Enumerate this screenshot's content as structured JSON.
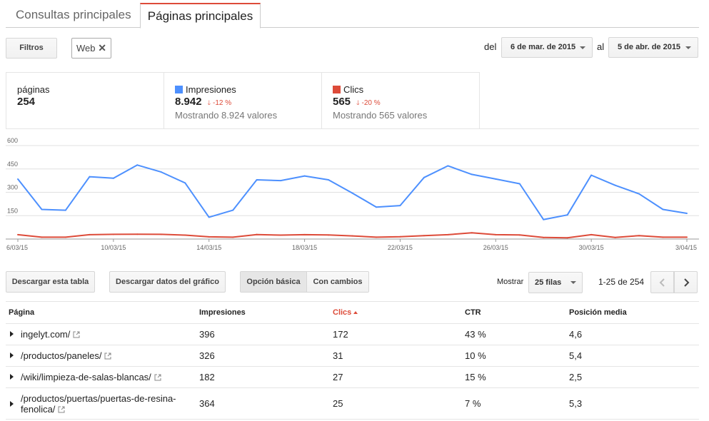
{
  "tabs": [
    {
      "label": "Consultas principales",
      "active": false
    },
    {
      "label": "Páginas principales",
      "active": true
    }
  ],
  "filters": {
    "button_label": "Filtros",
    "chip_label": "Web",
    "chip_close": "✕"
  },
  "dates": {
    "from_label": "del",
    "from_value": "6 de mar. de 2015",
    "to_label": "al",
    "to_value": "5 de abr. de 2015"
  },
  "stats": {
    "pages": {
      "label": "páginas",
      "value": "254"
    },
    "impressions": {
      "label": "Impresiones",
      "value": "8.942",
      "change": "-12 %",
      "sub": "Mostrando 8.924 valores",
      "color": "#4d90fe"
    },
    "clicks": {
      "label": "Clics",
      "value": "565",
      "change": "-20 %",
      "sub": "Mostrando 565 valores",
      "color": "#dd4b39"
    }
  },
  "chart_data": {
    "type": "line",
    "x": [
      "6/03/15",
      "7/03/15",
      "8/03/15",
      "9/03/15",
      "10/03/15",
      "11/03/15",
      "12/03/15",
      "13/03/15",
      "14/03/15",
      "15/03/15",
      "16/03/15",
      "17/03/15",
      "18/03/15",
      "19/03/15",
      "20/03/15",
      "21/03/15",
      "22/03/15",
      "23/03/15",
      "24/03/15",
      "25/03/15",
      "26/03/15",
      "27/03/15",
      "28/03/15",
      "29/03/15",
      "30/03/15",
      "31/03/15",
      "1/04/15",
      "2/04/15",
      "3/04/15"
    ],
    "tick_labels": [
      "6/03/15",
      "10/03/15",
      "14/03/15",
      "18/03/15",
      "22/03/15",
      "26/03/15",
      "30/03/15",
      "3/04/15"
    ],
    "series": [
      {
        "name": "Impresiones",
        "color": "#4d90fe",
        "values": [
          385,
          190,
          185,
          400,
          390,
          475,
          430,
          360,
          140,
          185,
          380,
          375,
          405,
          380,
          295,
          205,
          215,
          395,
          470,
          415,
          385,
          355,
          125,
          155,
          410,
          345,
          290,
          190,
          165
        ]
      },
      {
        "name": "Clics",
        "color": "#dd4b39",
        "values": [
          28,
          12,
          12,
          28,
          30,
          31,
          30,
          25,
          14,
          12,
          29,
          25,
          28,
          26,
          20,
          12,
          15,
          22,
          28,
          40,
          28,
          26,
          10,
          8,
          28,
          10,
          22,
          12,
          12
        ]
      }
    ],
    "yticks": [
      150,
      300,
      450,
      600
    ],
    "ylim": [
      0,
      600
    ],
    "grid": true,
    "legend": "none"
  },
  "toolbar": {
    "download_table": "Descargar esta tabla",
    "download_chart": "Descargar datos del gráfico",
    "basic_option": "Opción básica",
    "with_changes": "Con cambios",
    "show_label": "Mostrar",
    "rows_value": "25 filas",
    "range": "1-25 de 254"
  },
  "table": {
    "headers": {
      "page": "Página",
      "impressions": "Impresiones",
      "clicks": "Clics",
      "ctr": "CTR",
      "position": "Posición media"
    },
    "rows": [
      {
        "page": "ingelyt.com/",
        "impressions": "396",
        "clicks": "172",
        "ctr": "43 %",
        "position": "4,6"
      },
      {
        "page": "/productos/paneles/",
        "impressions": "326",
        "clicks": "31",
        "ctr": "10 %",
        "position": "5,4"
      },
      {
        "page": "/wiki/limpieza-de-salas-blancas/",
        "impressions": "182",
        "clicks": "27",
        "ctr": "15 %",
        "position": "2,5"
      },
      {
        "page_line1": "/productos/puertas/puertas-de-resina-",
        "page_line2": "fenolica/",
        "impressions": "364",
        "clicks": "25",
        "ctr": "7 %",
        "position": "5,3"
      }
    ]
  }
}
